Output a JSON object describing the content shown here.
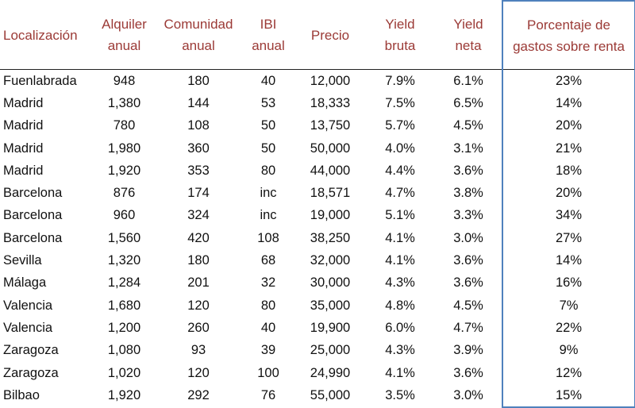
{
  "columns": [
    [
      "Localización"
    ],
    [
      "Alquiler",
      "anual"
    ],
    [
      "Comunidad",
      "anual"
    ],
    [
      "IBI",
      "anual"
    ],
    [
      "Precio"
    ],
    [
      "Yield",
      "bruta"
    ],
    [
      "Yield",
      "neta"
    ],
    [
      "Porcentaje de",
      "gastos sobre renta"
    ]
  ],
  "rows": [
    [
      "Fuenlabrada",
      "948",
      "180",
      "40",
      "12,000",
      "7.9%",
      "6.1%",
      "23%"
    ],
    [
      "Madrid",
      "1,380",
      "144",
      "53",
      "18,333",
      "7.5%",
      "6.5%",
      "14%"
    ],
    [
      "Madrid",
      "780",
      "108",
      "50",
      "13,750",
      "5.7%",
      "4.5%",
      "20%"
    ],
    [
      "Madrid",
      "1,980",
      "360",
      "50",
      "50,000",
      "4.0%",
      "3.1%",
      "21%"
    ],
    [
      "Madrid",
      "1,920",
      "353",
      "80",
      "44,000",
      "4.4%",
      "3.6%",
      "18%"
    ],
    [
      "Barcelona",
      "876",
      "174",
      "inc",
      "18,571",
      "4.7%",
      "3.8%",
      "20%"
    ],
    [
      "Barcelona",
      "960",
      "324",
      "inc",
      "19,000",
      "5.1%",
      "3.3%",
      "34%"
    ],
    [
      "Barcelona",
      "1,560",
      "420",
      "108",
      "38,250",
      "4.1%",
      "3.0%",
      "27%"
    ],
    [
      "Sevilla",
      "1,320",
      "180",
      "68",
      "32,000",
      "4.1%",
      "3.6%",
      "14%"
    ],
    [
      "Málaga",
      "1,284",
      "201",
      "32",
      "30,000",
      "4.3%",
      "3.6%",
      "16%"
    ],
    [
      "Valencia",
      "1,680",
      "120",
      "80",
      "35,000",
      "4.8%",
      "4.5%",
      "7%"
    ],
    [
      "Valencia",
      "1,200",
      "260",
      "40",
      "19,900",
      "6.0%",
      "4.7%",
      "22%"
    ],
    [
      "Zaragoza",
      "1,080",
      "93",
      "39",
      "25,000",
      "4.3%",
      "3.9%",
      "9%"
    ],
    [
      "Zaragoza",
      "1,020",
      "120",
      "100",
      "24,990",
      "4.1%",
      "3.6%",
      "12%"
    ],
    [
      "Bilbao",
      "1,920",
      "292",
      "76",
      "55,000",
      "3.5%",
      "3.0%",
      "15%"
    ]
  ],
  "colors": {
    "header_text": "#9b3a36",
    "highlight_border": "#4f81bd",
    "body_text": "#111111"
  }
}
